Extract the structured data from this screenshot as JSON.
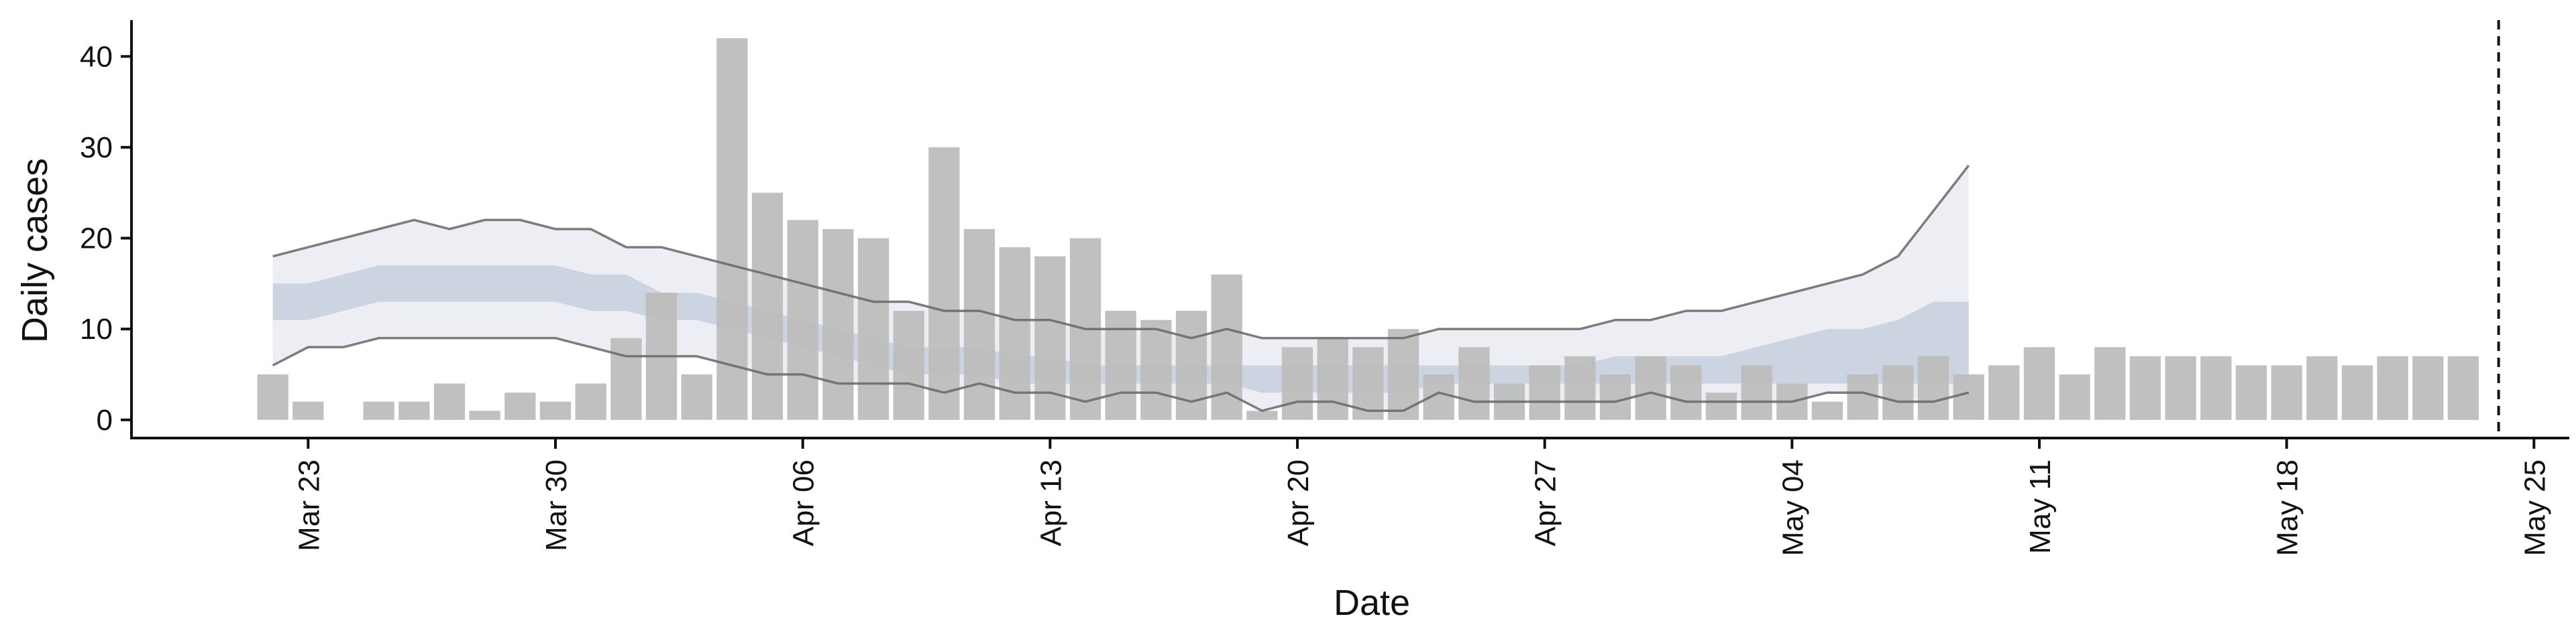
{
  "chart_data": {
    "type": "bar",
    "title": "",
    "xlabel": "Date",
    "ylabel": "Daily cases",
    "ylim": [
      -2,
      44
    ],
    "xlim": [
      "2020-03-18",
      "2020-05-26"
    ],
    "yticks": [
      0,
      10,
      20,
      30,
      40
    ],
    "xticks": [
      {
        "date": "2020-03-23",
        "label": "Mar 23"
      },
      {
        "date": "2020-03-30",
        "label": "Mar 30"
      },
      {
        "date": "2020-04-06",
        "label": "Apr 06"
      },
      {
        "date": "2020-04-13",
        "label": "Apr 13"
      },
      {
        "date": "2020-04-20",
        "label": "Apr 20"
      },
      {
        "date": "2020-04-27",
        "label": "Apr 27"
      },
      {
        "date": "2020-05-04",
        "label": "May 04"
      },
      {
        "date": "2020-05-11",
        "label": "May 11"
      },
      {
        "date": "2020-05-18",
        "label": "May 18"
      },
      {
        "date": "2020-05-25",
        "label": "May 25"
      }
    ],
    "grid": false,
    "legend": "none",
    "reference_line": {
      "date": "2020-05-24",
      "style": "dashed"
    },
    "bars": {
      "first_date": "2020-03-22",
      "color": "#bdbdbd",
      "values": [
        5,
        2,
        0,
        2,
        2,
        4,
        1,
        3,
        2,
        4,
        9,
        14,
        5,
        42,
        25,
        22,
        21,
        20,
        12,
        30,
        21,
        19,
        18,
        20,
        12,
        11,
        12,
        16,
        1,
        8,
        9,
        8,
        10,
        5,
        8,
        4,
        6,
        7,
        5,
        7,
        6,
        3,
        6,
        4,
        2,
        5,
        6,
        7,
        5,
        6,
        8,
        5,
        8,
        7,
        7,
        7,
        6,
        6,
        7,
        6,
        7,
        7,
        7
      ]
    },
    "bands": {
      "first_date": "2020-03-22",
      "outer_color": "#e9ebf1",
      "inner_color": "#c9cfdf",
      "upper_90": [
        18,
        19,
        20,
        21,
        22,
        21,
        22,
        22,
        21,
        21,
        19,
        19,
        18,
        17,
        16,
        15,
        14,
        13,
        13,
        12,
        12,
        11,
        11,
        10,
        10,
        10,
        9,
        10,
        9,
        9,
        9,
        9,
        9,
        10,
        10,
        10,
        10,
        10,
        11,
        11,
        12,
        12,
        13,
        14,
        15,
        16,
        18,
        23,
        28
      ],
      "upper_50": [
        15,
        15,
        16,
        17,
        17,
        17,
        17,
        17,
        17,
        16,
        16,
        14,
        14,
        13,
        12,
        11,
        10,
        9,
        8,
        8,
        8,
        7,
        7,
        6,
        6,
        6,
        6,
        6,
        6,
        6,
        6,
        6,
        6,
        6,
        6,
        6,
        6,
        6,
        7,
        7,
        7,
        7,
        8,
        9,
        10,
        10,
        11,
        13,
        13
      ],
      "lower_50": [
        11,
        11,
        12,
        13,
        13,
        13,
        13,
        13,
        13,
        12,
        12,
        11,
        11,
        10,
        9,
        8,
        7,
        6,
        5,
        5,
        5,
        4,
        4,
        4,
        4,
        4,
        4,
        4,
        3,
        3,
        3,
        3,
        3,
        4,
        4,
        4,
        4,
        4,
        4,
        4,
        4,
        4,
        4,
        4,
        4,
        4,
        4,
        4,
        4
      ],
      "lower_90": [
        6,
        8,
        8,
        9,
        9,
        9,
        9,
        9,
        9,
        8,
        7,
        7,
        7,
        6,
        5,
        5,
        4,
        4,
        4,
        3,
        4,
        3,
        3,
        2,
        3,
        3,
        2,
        3,
        1,
        2,
        2,
        1,
        1,
        3,
        2,
        2,
        2,
        2,
        2,
        3,
        2,
        2,
        2,
        2,
        3,
        3,
        2,
        2,
        3
      ]
    }
  }
}
